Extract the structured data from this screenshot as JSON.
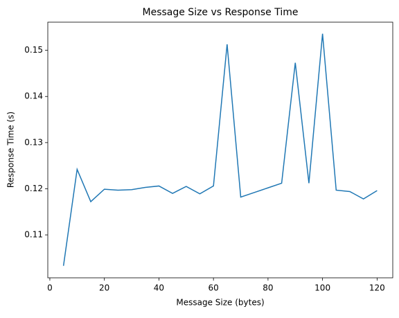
{
  "chart_data": {
    "type": "line",
    "title": "Message Size vs Response Time",
    "x_label": "Message Size (bytes)",
    "y_label": "Response Time (s)",
    "x": [
      5,
      10,
      15,
      20,
      25,
      30,
      35,
      40,
      45,
      50,
      55,
      60,
      65,
      70,
      75,
      80,
      85,
      90,
      95,
      100,
      105,
      110,
      115,
      120
    ],
    "series": [
      {
        "name": "Response Time",
        "color": "#1f77b4",
        "values": [
          0.1033,
          0.1242,
          0.1172,
          0.1199,
          0.1197,
          0.1198,
          0.1203,
          0.1206,
          0.119,
          0.1205,
          0.1189,
          0.1206,
          0.1513,
          0.1182,
          0.1192,
          0.1202,
          0.1212,
          0.1473,
          0.1212,
          0.1536,
          0.1197,
          0.1194,
          0.1178,
          0.1196
        ]
      }
    ],
    "xlim": [
      -0.75,
      125.75
    ],
    "xticks": [
      0,
      20,
      40,
      60,
      80,
      100,
      120
    ],
    "ylim": [
      0.1007,
      0.1561
    ],
    "yticks": [
      0.11,
      0.12,
      0.13,
      0.14,
      0.15
    ]
  }
}
